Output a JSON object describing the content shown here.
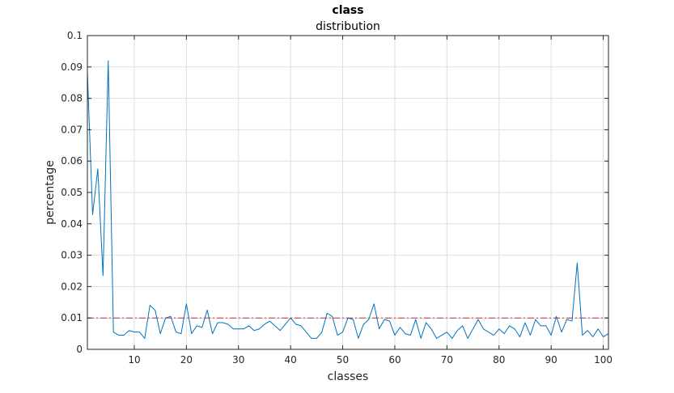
{
  "chart_data": {
    "type": "line",
    "title": "class",
    "subtitle": "distribution",
    "xlabel": "classes",
    "ylabel": "percentage",
    "xlim": [
      1,
      101
    ],
    "ylim": [
      0,
      0.1
    ],
    "xticks": [
      10,
      20,
      30,
      40,
      50,
      60,
      70,
      80,
      90,
      100
    ],
    "yticks": [
      0,
      0.01,
      0.02,
      0.03,
      0.04,
      0.05,
      0.06,
      0.07,
      0.08,
      0.09,
      0.1
    ],
    "grid": true,
    "series": [
      {
        "color": "#0072BD",
        "x": [
          1,
          2,
          3,
          4,
          5,
          6,
          7,
          8,
          9,
          10,
          11,
          12,
          13,
          14,
          15,
          16,
          17,
          18,
          19,
          20,
          21,
          22,
          23,
          24,
          25,
          26,
          27,
          28,
          29,
          30,
          31,
          32,
          33,
          34,
          35,
          36,
          37,
          38,
          39,
          40,
          41,
          42,
          43,
          44,
          45,
          46,
          47,
          48,
          49,
          50,
          51,
          52,
          53,
          54,
          55,
          56,
          57,
          58,
          59,
          60,
          61,
          62,
          63,
          64,
          65,
          66,
          67,
          68,
          69,
          70,
          71,
          72,
          73,
          74,
          75,
          76,
          77,
          78,
          79,
          80,
          81,
          82,
          83,
          84,
          85,
          86,
          87,
          88,
          89,
          90,
          91,
          92,
          93,
          94,
          95,
          96,
          97,
          98,
          99,
          100,
          101
        ],
        "values": [
          0.0885,
          0.043,
          0.0575,
          0.0235,
          0.092,
          0.0055,
          0.0045,
          0.0045,
          0.006,
          0.0055,
          0.0055,
          0.0035,
          0.014,
          0.0125,
          0.005,
          0.01,
          0.0105,
          0.0055,
          0.005,
          0.0145,
          0.005,
          0.0075,
          0.007,
          0.0125,
          0.005,
          0.0085,
          0.0085,
          0.008,
          0.0065,
          0.0065,
          0.0065,
          0.0075,
          0.006,
          0.0065,
          0.008,
          0.009,
          0.0075,
          0.006,
          0.008,
          0.01,
          0.008,
          0.0075,
          0.0055,
          0.0035,
          0.0035,
          0.0055,
          0.0115,
          0.0105,
          0.0045,
          0.0055,
          0.01,
          0.0095,
          0.0035,
          0.008,
          0.0095,
          0.0145,
          0.0065,
          0.0095,
          0.009,
          0.0045,
          0.007,
          0.005,
          0.0045,
          0.0095,
          0.0035,
          0.0085,
          0.0065,
          0.0035,
          0.0045,
          0.0055,
          0.0035,
          0.006,
          0.0075,
          0.0035,
          0.0065,
          0.0095,
          0.0065,
          0.0055,
          0.0045,
          0.0065,
          0.005,
          0.0075,
          0.0065,
          0.004,
          0.0085,
          0.0045,
          0.0095,
          0.0075,
          0.0075,
          0.0045,
          0.0105,
          0.0055,
          0.0095,
          0.009,
          0.0275,
          0.0045,
          0.006,
          0.004,
          0.0065,
          0.004,
          0.005
        ]
      }
    ],
    "reference_line": {
      "y": 0.01,
      "style": "dash-dot",
      "color": "#D62728"
    }
  }
}
